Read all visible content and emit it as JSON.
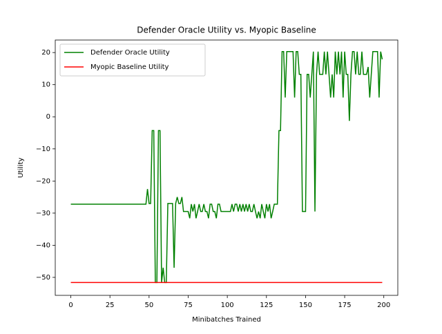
{
  "chart_data": {
    "type": "line",
    "title": "Defender Oracle Utility vs. Myopic Baseline",
    "xlabel": "Minibatches Trained",
    "ylabel": "Utility",
    "legend": "upper left",
    "xlim": [
      -9.95,
      208.95
    ],
    "ylim": [
      -55.6,
      23.9
    ],
    "xticks": [
      0,
      25,
      50,
      75,
      100,
      125,
      150,
      175,
      200
    ],
    "yticks": [
      {
        "value": -50,
        "label": "−50"
      },
      {
        "value": -40,
        "label": "−40"
      },
      {
        "value": -30,
        "label": "−30"
      },
      {
        "value": -20,
        "label": "−20"
      },
      {
        "value": -10,
        "label": "−10"
      },
      0,
      10,
      20
    ],
    "series": [
      {
        "name": "Defender Oracle Utility",
        "color": "#008000",
        "x": [
          0,
          1,
          2,
          3,
          4,
          5,
          6,
          7,
          8,
          9,
          10,
          11,
          12,
          13,
          14,
          15,
          16,
          17,
          18,
          19,
          20,
          21,
          22,
          23,
          24,
          25,
          26,
          27,
          28,
          29,
          30,
          31,
          32,
          33,
          34,
          35,
          36,
          37,
          38,
          39,
          40,
          41,
          42,
          43,
          44,
          45,
          46,
          47,
          48,
          49,
          50,
          51,
          52,
          53,
          54,
          55,
          56,
          57,
          58,
          59,
          60,
          61,
          62,
          63,
          64,
          65,
          66,
          67,
          68,
          69,
          70,
          71,
          72,
          73,
          74,
          75,
          76,
          77,
          78,
          79,
          80,
          81,
          82,
          83,
          84,
          85,
          86,
          87,
          88,
          89,
          90,
          91,
          92,
          93,
          94,
          95,
          96,
          97,
          98,
          99,
          100,
          101,
          102,
          103,
          104,
          105,
          106,
          107,
          108,
          109,
          110,
          111,
          112,
          113,
          114,
          115,
          116,
          117,
          118,
          119,
          120,
          121,
          122,
          123,
          124,
          125,
          126,
          127,
          128,
          129,
          130,
          131,
          132,
          133,
          134,
          135,
          136,
          137,
          138,
          139,
          140,
          141,
          142,
          143,
          144,
          145,
          146,
          147,
          148,
          149,
          150,
          151,
          152,
          153,
          154,
          155,
          156,
          157,
          158,
          159,
          160,
          161,
          162,
          163,
          164,
          165,
          166,
          167,
          168,
          169,
          170,
          171,
          172,
          173,
          174,
          175,
          176,
          177,
          178,
          179,
          180,
          181,
          182,
          183,
          184,
          185,
          186,
          187,
          188,
          189,
          190,
          191,
          192,
          193,
          194,
          195,
          196,
          197,
          198,
          199
        ],
        "values": [
          -27.2,
          -27.2,
          -27.2,
          -27.2,
          -27.2,
          -27.2,
          -27.2,
          -27.2,
          -27.2,
          -27.2,
          -27.2,
          -27.2,
          -27.2,
          -27.2,
          -27.2,
          -27.2,
          -27.2,
          -27.2,
          -27.2,
          -27.2,
          -27.2,
          -27.2,
          -27.2,
          -27.2,
          -27.2,
          -27.2,
          -27.2,
          -27.2,
          -27.2,
          -27.2,
          -27.2,
          -27.2,
          -27.2,
          -27.2,
          -27.2,
          -27.2,
          -27.2,
          -27.2,
          -27.2,
          -27.2,
          -27.2,
          -27.2,
          -27.2,
          -27.2,
          -27.2,
          -27.2,
          -27.2,
          -27.2,
          -27.2,
          -22.5,
          -27,
          -27,
          -4.3,
          -4.3,
          -51.6,
          -51.6,
          -4.3,
          -4.3,
          -51.6,
          -47,
          -51.6,
          -51.6,
          -27,
          -27,
          -27,
          -27,
          -47,
          -27,
          -25,
          -27,
          -27,
          -25,
          -29.5,
          -29.5,
          -29.5,
          -29.5,
          -31.6,
          -27.2,
          -29.5,
          -27.2,
          -31.6,
          -29.5,
          -27.2,
          -29.5,
          -29.5,
          -27.2,
          -29.5,
          -29.5,
          -31.6,
          -27.2,
          -27.2,
          -29.5,
          -29.5,
          -31.6,
          -27.2,
          -27.2,
          -29.5,
          -29.5,
          -29.5,
          -29.5,
          -29.5,
          -29.5,
          -29.5,
          -27.2,
          -29.5,
          -27.2,
          -27.2,
          -29.5,
          -27.2,
          -29.5,
          -27.2,
          -29.5,
          -27.2,
          -29.5,
          -27.2,
          -29.5,
          -29.5,
          -27.2,
          -29.5,
          -31.6,
          -29.5,
          -31.6,
          -27.2,
          -29.5,
          -31.6,
          -27.2,
          -29.5,
          -27.2,
          -31.6,
          -29.5,
          -27.2,
          -27.2,
          -27.2,
          -4.3,
          -4.3,
          20.3,
          20.3,
          6,
          20.3,
          20.3,
          20.3,
          20.3,
          20.3,
          6,
          20.3,
          20.3,
          13.2,
          13.2,
          -29.5,
          -29.5,
          -29.5,
          13.2,
          13.2,
          6,
          13.2,
          20.3,
          -29.5,
          13.2,
          20.3,
          13.2,
          13.2,
          13.2,
          20.3,
          13.2,
          20.3,
          13.2,
          6,
          13.2,
          6,
          20.3,
          13.2,
          20.3,
          13.2,
          20.3,
          6,
          20.3,
          13.2,
          13.2,
          -1.3,
          13.2,
          20.3,
          20.3,
          13.2,
          20.3,
          13.2,
          13.2,
          20.3,
          13.2,
          13.2,
          13.2,
          15.5,
          6,
          13.2,
          20.3,
          20.3,
          20.3,
          20.3,
          6,
          20.3,
          17.9
        ]
      },
      {
        "name": "Myopic Baseline Utility",
        "color": "#ff0000",
        "x": [
          0,
          199
        ],
        "values": [
          -51.6,
          -51.6
        ]
      }
    ]
  }
}
